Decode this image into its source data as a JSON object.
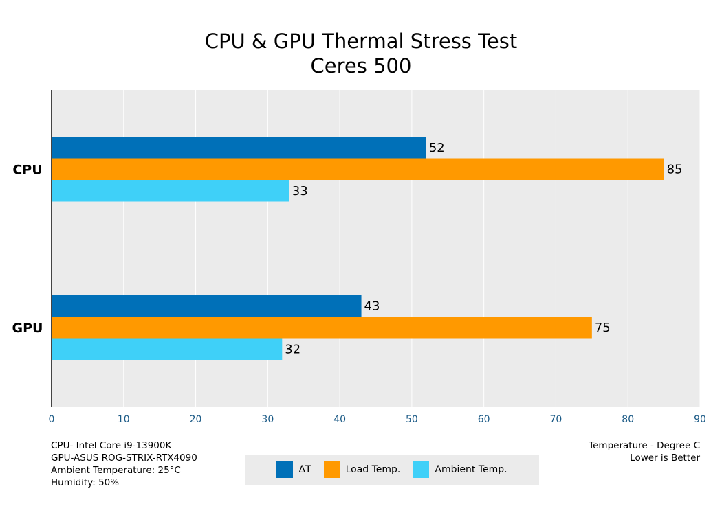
{
  "chart_data": {
    "type": "bar",
    "orientation": "horizontal",
    "title": "CPU & GPU Thermal Stress Test",
    "subtitle": "Ceres 500",
    "categories": [
      "CPU",
      "GPU"
    ],
    "series": [
      {
        "name": "ΔT",
        "color": "#0070b8",
        "values": [
          52,
          43
        ]
      },
      {
        "name": "Load Temp.",
        "color": "#ff9900",
        "values": [
          85,
          75
        ]
      },
      {
        "name": "Ambient Temp.",
        "color": "#3fd0f8",
        "values": [
          33,
          32
        ]
      }
    ],
    "xlim": [
      0,
      90
    ],
    "xticks": [
      0,
      10,
      20,
      30,
      40,
      50,
      60,
      70,
      80,
      90
    ],
    "grid": true,
    "legend_position": "bottom-center",
    "xlabel": "Temperature - Degree C",
    "xlabel_note": "Lower is Better"
  },
  "notes": {
    "cpu": "CPU- Intel Core i9-13900K",
    "gpu": "GPU-ASUS ROG-STRIX-RTX4090",
    "ambient": "Ambient Temperature: 25°C",
    "humidity": "Humidity: 50%",
    "axis_title": "Temperature - Degree C",
    "axis_note": "Lower is Better"
  }
}
